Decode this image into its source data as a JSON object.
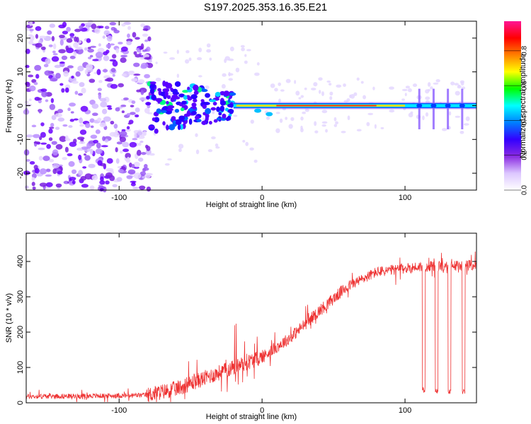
{
  "title": "S197.2025.353.16.35.E21",
  "chart_data": [
    {
      "type": "heatmap",
      "xlabel": "Height of straight line (km)",
      "ylabel": "Frequency (Hz)",
      "xlim": [
        -165,
        150
      ],
      "ylim": [
        -25,
        25
      ],
      "xticks": [
        -100,
        0,
        100
      ],
      "xtick_labels": [
        "-100",
        "0",
        "100"
      ],
      "yticks": [
        -20,
        -10,
        0,
        10,
        20
      ],
      "ytick_labels": [
        "-20",
        "-10",
        "0",
        "10",
        "20"
      ],
      "colorbar": {
        "label": "Normalized spectral amplitude",
        "range": [
          0,
          0.97
        ],
        "ticks": [
          0.0,
          0.2,
          0.4,
          0.6,
          0.8
        ],
        "tick_labels": [
          "0.0",
          "0.2",
          "0.4",
          "0.6",
          "0.8"
        ],
        "colors": [
          "#ffffff",
          "#dcc6ff",
          "#8a2be2",
          "#3300ff",
          "#0080ff",
          "#00ffff",
          "#00ff00",
          "#ffff00",
          "#ff8000",
          "#ff0000",
          "#ff1493"
        ]
      },
      "signal": {
        "center_frequency_hz": 0,
        "noise_region_km": [
          -165,
          -80
        ],
        "transition_region_km": [
          -80,
          -20
        ],
        "strong_tone_region_km": [
          -20,
          150
        ],
        "spike_heights_km": [
          110,
          120,
          130,
          140
        ]
      }
    },
    {
      "type": "line",
      "xlabel": "Height of straight line (km)",
      "ylabel": "SNR (10 * v/v)",
      "xlim": [
        -165,
        150
      ],
      "ylim": [
        0,
        480
      ],
      "xticks": [
        -100,
        0,
        100
      ],
      "xtick_labels": [
        "-100",
        "0",
        "100"
      ],
      "yticks": [
        0,
        100,
        200,
        300,
        400
      ],
      "ytick_labels": [
        "0",
        "100",
        "200",
        "300",
        "400"
      ],
      "series": [
        {
          "name": "SNR",
          "color": "#ee3333",
          "trend_x": [
            -165,
            -100,
            -80,
            -60,
            -40,
            -20,
            0,
            20,
            40,
            60,
            80,
            100,
            110,
            150
          ],
          "trend_y": [
            18,
            20,
            22,
            40,
            70,
            100,
            130,
            185,
            260,
            330,
            370,
            380,
            385,
            390
          ],
          "dropouts": [
            {
              "start": 112,
              "end": 114,
              "min": 30
            },
            {
              "start": 121,
              "end": 123,
              "min": 25
            },
            {
              "start": 130,
              "end": 132,
              "min": 22
            },
            {
              "start": 140,
              "end": 142,
              "min": 25
            }
          ]
        }
      ]
    }
  ]
}
